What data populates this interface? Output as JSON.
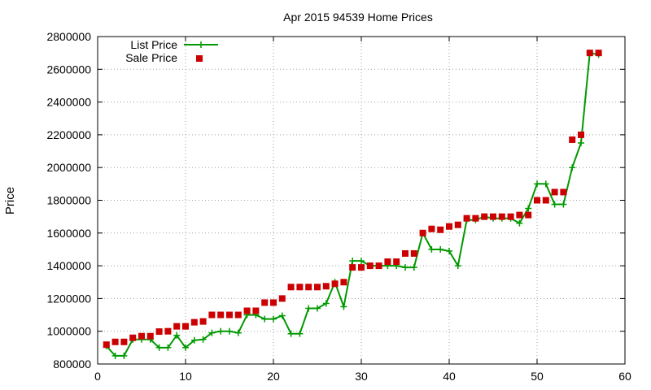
{
  "chart_data": {
    "type": "line",
    "title": "Apr 2015 94539 Home Prices",
    "xlabel": "",
    "ylabel": "Price",
    "xlim": [
      0,
      60
    ],
    "ylim": [
      800000,
      2800000
    ],
    "xticks": [
      "0",
      "10",
      "20",
      "30",
      "40",
      "50",
      "60"
    ],
    "yticks": [
      "800000",
      "1000000",
      "1200000",
      "1400000",
      "1600000",
      "1800000",
      "2000000",
      "2200000",
      "2400000",
      "2600000",
      "2800000"
    ],
    "grid": true,
    "legend": "top-left",
    "x": [
      1,
      2,
      3,
      4,
      5,
      6,
      7,
      8,
      9,
      10,
      11,
      12,
      13,
      14,
      15,
      16,
      17,
      18,
      19,
      20,
      21,
      22,
      23,
      24,
      25,
      26,
      27,
      28,
      29,
      30,
      31,
      32,
      33,
      34,
      35,
      36,
      37,
      38,
      39,
      40,
      41,
      42,
      43,
      44,
      45,
      46,
      47,
      48,
      49,
      50,
      51,
      52,
      53,
      54,
      55,
      56,
      57
    ],
    "series": [
      {
        "name": "List Price",
        "color": "#009900",
        "style": "line+cross",
        "values": [
          910000,
          850000,
          850000,
          950000,
          950000,
          950000,
          900000,
          900000,
          975000,
          900000,
          945000,
          950000,
          990000,
          1000000,
          1000000,
          990000,
          1100000,
          1100000,
          1075000,
          1075000,
          1095000,
          985000,
          985000,
          1140000,
          1140000,
          1170000,
          1300000,
          1150000,
          1430000,
          1430000,
          1400000,
          1400000,
          1400000,
          1400000,
          1390000,
          1390000,
          1600000,
          1500000,
          1500000,
          1490000,
          1400000,
          1680000,
          1680000,
          1700000,
          1690000,
          1690000,
          1690000,
          1660000,
          1750000,
          1900000,
          1900000,
          1775000,
          1775000,
          2000000,
          2150000,
          2700000,
          2690000
        ]
      },
      {
        "name": "Sale Price",
        "color": "#cc0000",
        "style": "square",
        "values": [
          918000,
          935000,
          935000,
          960000,
          970000,
          970000,
          998000,
          1000000,
          1030000,
          1030000,
          1055000,
          1060000,
          1100000,
          1100000,
          1100000,
          1100000,
          1125000,
          1125000,
          1175000,
          1175000,
          1200000,
          1270000,
          1270000,
          1270000,
          1270000,
          1275000,
          1290000,
          1300000,
          1390000,
          1390000,
          1400000,
          1400000,
          1425000,
          1425000,
          1475000,
          1475000,
          1600000,
          1625000,
          1620000,
          1640000,
          1650000,
          1690000,
          1690000,
          1700000,
          1700000,
          1700000,
          1700000,
          1710000,
          1710000,
          1800000,
          1800000,
          1850000,
          1850000,
          2170000,
          2200000,
          2700000,
          2700000
        ]
      }
    ]
  }
}
